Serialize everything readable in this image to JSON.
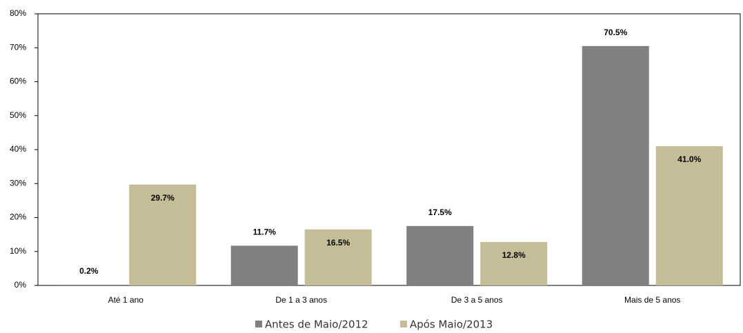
{
  "chart_data": {
    "type": "bar",
    "categories": [
      "Até 1 ano",
      "De 1 a 3 anos",
      "De 3 a 5 anos",
      "Mais de 5 anos"
    ],
    "series": [
      {
        "name": "Antes de Maio/2012",
        "color": "#808080",
        "values": [
          0.2,
          11.7,
          17.5,
          70.5
        ],
        "value_labels": [
          "0.2%",
          "11.7%",
          "17.5%",
          "70.5%"
        ]
      },
      {
        "name": "Após Maio/2013",
        "color": "#c4bd97",
        "values": [
          29.7,
          16.5,
          12.8,
          41.0
        ],
        "value_labels": [
          "29.7%",
          "16.5%",
          "12.8%",
          "41.0%"
        ]
      }
    ],
    "ylim": [
      0,
      80
    ],
    "yticks": [
      {
        "value": 0,
        "label": "0%"
      },
      {
        "value": 10,
        "label": "10%"
      },
      {
        "value": 20,
        "label": "20%"
      },
      {
        "value": 30,
        "label": "30%"
      },
      {
        "value": 40,
        "label": "40%"
      },
      {
        "value": 50,
        "label": "50%"
      },
      {
        "value": 60,
        "label": "60%"
      },
      {
        "value": 70,
        "label": "70%"
      },
      {
        "value": 80,
        "label": "80%"
      }
    ],
    "legend": "bottom"
  }
}
